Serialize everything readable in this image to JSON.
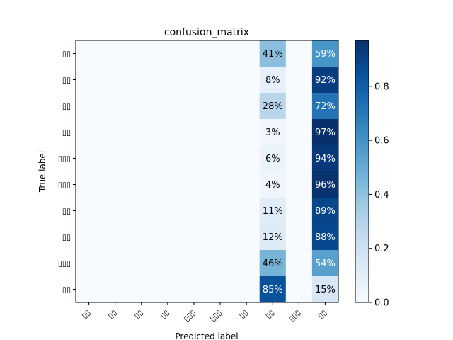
{
  "chart_data": {
    "type": "heatmap",
    "title": "confusion_matrix",
    "xlabel": "Predicted label",
    "ylabel": "True label",
    "x_tick_labels": [
      "▯▯",
      "▯▯",
      "▯▯",
      "▯▯",
      "▯▯▯",
      "▯▯▯",
      "▯▯",
      "▯▯",
      "▯▯▯",
      "▯▯"
    ],
    "y_tick_labels": [
      "▯▯",
      "▯▯",
      "▯▯",
      "▯▯",
      "▯▯▯",
      "▯▯▯",
      "▯▯",
      "▯▯",
      "▯▯▯",
      "▯▯"
    ],
    "values": [
      [
        0,
        0,
        0,
        0,
        0,
        0,
        0,
        0.41,
        0,
        0.59
      ],
      [
        0,
        0,
        0,
        0,
        0,
        0,
        0,
        0.08,
        0,
        0.92
      ],
      [
        0,
        0,
        0,
        0,
        0,
        0,
        0,
        0.28,
        0,
        0.72
      ],
      [
        0,
        0,
        0,
        0,
        0,
        0,
        0,
        0.03,
        0,
        0.97
      ],
      [
        0,
        0,
        0,
        0,
        0,
        0,
        0,
        0.06,
        0,
        0.94
      ],
      [
        0,
        0,
        0,
        0,
        0,
        0,
        0,
        0.04,
        0,
        0.96
      ],
      [
        0,
        0,
        0,
        0,
        0,
        0,
        0,
        0.11,
        0,
        0.89
      ],
      [
        0,
        0,
        0,
        0,
        0,
        0,
        0,
        0.12,
        0,
        0.88
      ],
      [
        0,
        0,
        0,
        0,
        0,
        0,
        0,
        0.46,
        0,
        0.54
      ],
      [
        0,
        0,
        0,
        0,
        0,
        0,
        0,
        0.85,
        0,
        0.15
      ]
    ],
    "cell_labels": [
      [
        "",
        "",
        "",
        "",
        "",
        "",
        "",
        "41%",
        "",
        "59%"
      ],
      [
        "",
        "",
        "",
        "",
        "",
        "",
        "",
        "8%",
        "",
        "92%"
      ],
      [
        "",
        "",
        "",
        "",
        "",
        "",
        "",
        "28%",
        "",
        "72%"
      ],
      [
        "",
        "",
        "",
        "",
        "",
        "",
        "",
        "3%",
        "",
        "97%"
      ],
      [
        "",
        "",
        "",
        "",
        "",
        "",
        "",
        "6%",
        "",
        "94%"
      ],
      [
        "",
        "",
        "",
        "",
        "",
        "",
        "",
        "4%",
        "",
        "96%"
      ],
      [
        "",
        "",
        "",
        "",
        "",
        "",
        "",
        "11%",
        "",
        "89%"
      ],
      [
        "",
        "",
        "",
        "",
        "",
        "",
        "",
        "12%",
        "",
        "88%"
      ],
      [
        "",
        "",
        "",
        "",
        "",
        "",
        "",
        "46%",
        "",
        "54%"
      ],
      [
        "",
        "",
        "",
        "",
        "",
        "",
        "",
        "85%",
        "",
        "15%"
      ]
    ],
    "colorbar": {
      "colormap": "Blues",
      "range": [
        0,
        0.97
      ],
      "ticks": [
        0.0,
        0.2,
        0.4,
        0.6,
        0.8
      ],
      "tick_labels": [
        "0.0",
        "0.2",
        "0.4",
        "0.6",
        "0.8"
      ]
    },
    "grid": false,
    "colors": {
      "colormap_stops": [
        "#f7fbff",
        "#deebf7",
        "#c6dbef",
        "#9ecae1",
        "#6baed6",
        "#4292c6",
        "#2171b5",
        "#08519c",
        "#08306b"
      ],
      "text_dark": "#000000",
      "text_light": "#ffffff"
    }
  }
}
